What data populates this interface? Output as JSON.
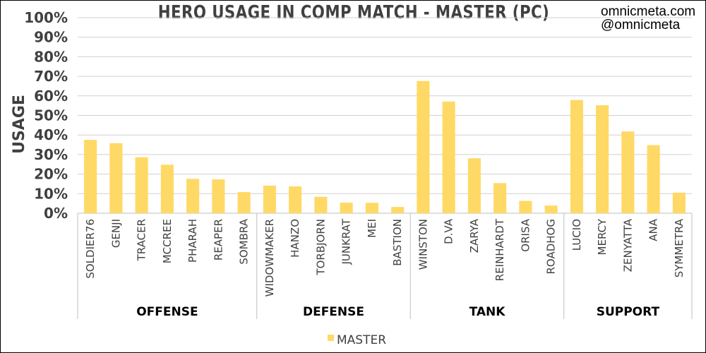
{
  "header": {
    "title": "HERO USAGE IN COMP MATCH - MASTER (PC)",
    "credit_site": "omnicmeta.com",
    "credit_handle": "@omnicmeta"
  },
  "chart_data": {
    "type": "bar",
    "title": "HERO USAGE IN COMP MATCH - MASTER (PC)",
    "xlabel": "",
    "ylabel": "USAGE",
    "ylim": [
      0,
      100
    ],
    "y_ticks": [
      "0%",
      "10%",
      "20%",
      "30%",
      "40%",
      "50%",
      "60%",
      "70%",
      "80%",
      "90%",
      "100%"
    ],
    "grid": true,
    "legend": {
      "placement": "bottom",
      "entries": [
        "MASTER"
      ]
    },
    "bar_color": "#FFD966",
    "groups": [
      {
        "name": "OFFENSE",
        "categories": [
          "SOLDIER76",
          "GENJI",
          "TRACER",
          "MCCREE",
          "PHARAH",
          "REAPER",
          "SOMBRA"
        ]
      },
      {
        "name": "DEFENSE",
        "categories": [
          "WIDOWMAKER",
          "HANZO",
          "TORBJORN",
          "JUNKRAT",
          "MEI",
          "BASTION"
        ]
      },
      {
        "name": "TANK",
        "categories": [
          "WINSTON",
          "D.VA",
          "ZARYA",
          "REINHARDT",
          "ORISA",
          "ROADHOG"
        ]
      },
      {
        "name": "SUPPORT",
        "categories": [
          "LUCIO",
          "MERCY",
          "ZENYATTA",
          "ANA",
          "SYMMETRA"
        ]
      }
    ],
    "categories": [
      "SOLDIER76",
      "GENJI",
      "TRACER",
      "MCCREE",
      "PHARAH",
      "REAPER",
      "SOMBRA",
      "WIDOWMAKER",
      "HANZO",
      "TORBJORN",
      "JUNKRAT",
      "MEI",
      "BASTION",
      "WINSTON",
      "D.VA",
      "ZARYA",
      "REINHARDT",
      "ORISA",
      "ROADHOG",
      "LUCIO",
      "MERCY",
      "ZENYATTA",
      "ANA",
      "SYMMETRA"
    ],
    "series": [
      {
        "name": "MASTER",
        "values": [
          37.5,
          35.8,
          28.6,
          24.8,
          17.6,
          17.3,
          10.8,
          14.1,
          13.7,
          8.4,
          5.4,
          5.3,
          3.2,
          67.6,
          57.1,
          28.1,
          15.4,
          6.3,
          3.9,
          57.9,
          55.2,
          41.8,
          34.8,
          10.5
        ]
      }
    ]
  }
}
